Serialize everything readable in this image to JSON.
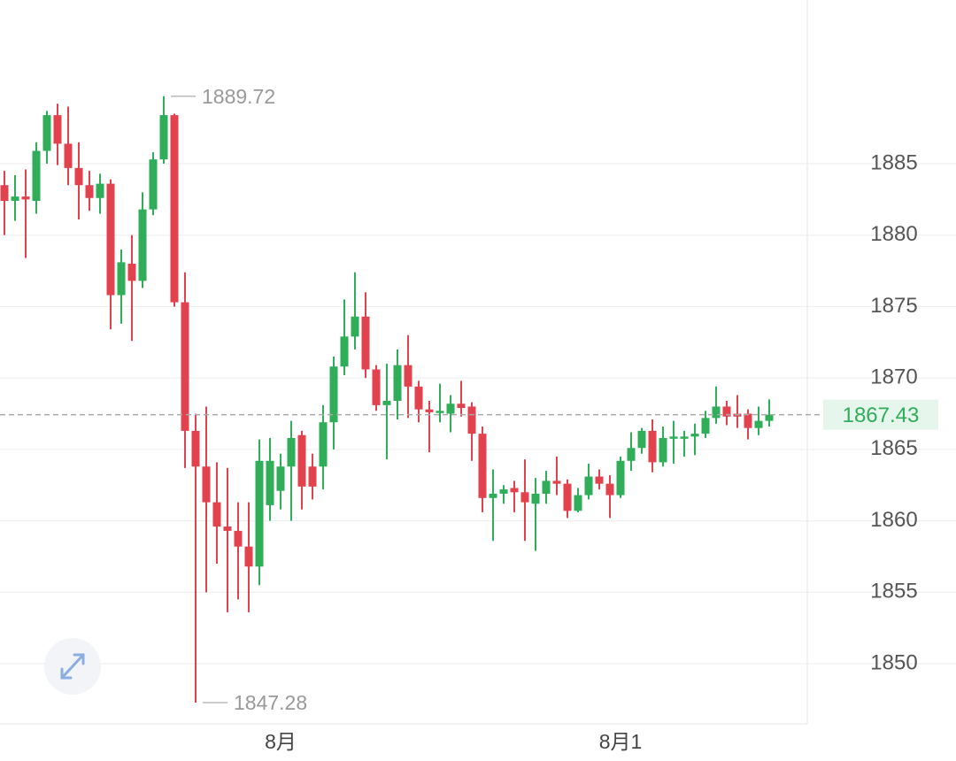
{
  "chart_data": {
    "type": "candlestick",
    "up_color": "#2fad59",
    "down_color": "#e2414e",
    "ylim": [
      1845.79,
      1896.46
    ],
    "yticks": [
      1850,
      1855,
      1860,
      1865,
      1870,
      1875,
      1880,
      1885
    ],
    "grid": true,
    "categories": [
      null,
      null,
      null,
      null,
      null,
      null,
      null,
      null,
      null,
      null,
      null,
      null,
      null,
      null,
      null,
      null,
      null,
      null,
      null,
      null,
      null,
      null,
      null,
      null,
      null,
      null,
      "8月",
      null,
      null,
      null,
      null,
      null,
      null,
      null,
      null,
      null,
      null,
      null,
      null,
      null,
      null,
      null,
      null,
      null,
      null,
      null,
      null,
      null,
      null,
      null,
      null,
      null,
      null,
      null,
      null,
      null,
      null,
      null,
      "8月1",
      null,
      null,
      null,
      null,
      null,
      null,
      null,
      null,
      null,
      null,
      null,
      null,
      null,
      null
    ],
    "open": [
      1883.5,
      1882.4,
      1882.7,
      1882.4,
      1885.9,
      1888.4,
      1886.4,
      1884.7,
      1883.5,
      1882.6,
      1883.6,
      1875.8,
      1878.0,
      1876.8,
      1881.8,
      1885.3,
      1888.4,
      1875.3,
      1866.3,
      1863.8,
      1861.3,
      1859.6,
      1859.3,
      1858.2,
      1856.8,
      1861.1,
      1862.1,
      1863.8,
      1866.0,
      1863.8,
      1863.8,
      1866.9,
      1870.8,
      1872.9,
      1874.3,
      1870.6,
      1868.1,
      1868.4,
      1870.9,
      1869.4,
      1867.8,
      1867.6,
      1867.5,
      1868.2,
      1868.0,
      1866.1,
      1861.6,
      1861.9,
      1862.3,
      1862.0,
      1861.2,
      1861.9,
      1862.8,
      1862.6,
      1860.7,
      1861.8,
      1863.1,
      1862.6,
      1861.8,
      1864.2,
      1865.1,
      1866.3,
      1864.1,
      1865.8,
      1865.8,
      1865.9,
      1866.1,
      1867.2,
      1868.0,
      1867.5,
      1867.5,
      1866.5,
      1867.0
    ],
    "high": [
      1884.5,
      1884.2,
      1884.6,
      1886.5,
      1888.7,
      1889.2,
      1889.0,
      1886.5,
      1884.5,
      1884.3,
      1883.9,
      1879.0,
      1880.0,
      1883.0,
      1885.8,
      1889.72,
      1888.5,
      1877.4,
      1867.5,
      1868.0,
      1864.1,
      1863.7,
      1861.3,
      1861.3,
      1865.7,
      1865.8,
      1864.7,
      1867.0,
      1866.3,
      1864.7,
      1868.1,
      1871.5,
      1875.5,
      1877.4,
      1876.0,
      1870.9,
      1871.0,
      1872.0,
      1873.0,
      1869.8,
      1868.4,
      1869.6,
      1868.8,
      1869.8,
      1868.3,
      1866.6,
      1863.6,
      1862.5,
      1862.8,
      1864.3,
      1863.0,
      1863.5,
      1864.5,
      1862.9,
      1862.3,
      1864.0,
      1863.6,
      1863.2,
      1864.5,
      1866.2,
      1866.5,
      1867.1,
      1866.6,
      1867.0,
      1866.3,
      1866.8,
      1867.7,
      1869.4,
      1868.4,
      1868.8,
      1867.8,
      1868.0,
      1868.5
    ],
    "low": [
      1880.0,
      1881.0,
      1878.4,
      1881.5,
      1885.0,
      1884.9,
      1883.5,
      1881.1,
      1881.7,
      1881.5,
      1873.4,
      1873.8,
      1872.6,
      1876.3,
      1881.4,
      1885.0,
      1875.0,
      1863.7,
      1847.28,
      1855.0,
      1857.0,
      1853.6,
      1854.5,
      1853.6,
      1855.5,
      1860.0,
      1860.8,
      1860.0,
      1860.8,
      1861.5,
      1862.2,
      1865.0,
      1870.2,
      1872.0,
      1870.0,
      1867.7,
      1864.3,
      1867.1,
      1867.2,
      1866.9,
      1864.8,
      1866.9,
      1866.2,
      1867.3,
      1864.2,
      1860.6,
      1858.6,
      1861.2,
      1860.6,
      1858.6,
      1857.9,
      1861.2,
      1861.8,
      1860.2,
      1860.6,
      1861.5,
      1862.2,
      1860.2,
      1861.6,
      1863.5,
      1864.7,
      1863.4,
      1863.8,
      1864.0,
      1864.5,
      1864.6,
      1865.8,
      1866.8,
      1866.7,
      1866.5,
      1865.7,
      1866.0,
      1866.6
    ],
    "close": [
      1882.4,
      1882.7,
      1882.5,
      1885.9,
      1888.4,
      1886.4,
      1884.7,
      1883.5,
      1882.6,
      1883.6,
      1875.8,
      1878.1,
      1876.8,
      1881.8,
      1885.3,
      1888.4,
      1875.3,
      1866.3,
      1863.8,
      1861.3,
      1859.6,
      1859.3,
      1858.2,
      1856.8,
      1864.2,
      1864.2,
      1863.8,
      1865.8,
      1862.4,
      1862.4,
      1866.9,
      1870.8,
      1872.9,
      1874.3,
      1870.6,
      1868.1,
      1868.4,
      1870.9,
      1869.4,
      1867.8,
      1867.6,
      1867.7,
      1868.2,
      1867.9,
      1866.1,
      1861.6,
      1861.9,
      1862.2,
      1862.0,
      1861.3,
      1861.9,
      1862.8,
      1862.6,
      1860.7,
      1861.8,
      1863.1,
      1862.6,
      1861.8,
      1864.2,
      1865.1,
      1866.3,
      1864.1,
      1865.8,
      1865.9,
      1865.9,
      1866.1,
      1867.2,
      1868.0,
      1867.3,
      1867.3,
      1866.5,
      1867.0,
      1867.43
    ]
  }
}
